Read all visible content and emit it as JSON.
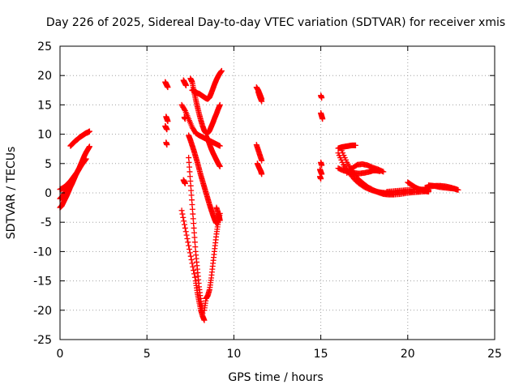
{
  "chart_data": {
    "type": "scatter",
    "title": "Day 226 of 2025, Sidereal Day-to-day VTEC variation (SDTVAR) for receiver xmis",
    "xlabel": "GPS time / hours",
    "ylabel": "SDTVAR / TECUs",
    "xlim": [
      0,
      25
    ],
    "ylim": [
      -25,
      25
    ],
    "xticks": [
      0,
      5,
      10,
      15,
      20,
      25
    ],
    "yticks": [
      -25,
      -20,
      -15,
      -10,
      -5,
      0,
      5,
      10,
      15,
      20,
      25
    ],
    "xtick_labels": [
      "0",
      "5",
      "10",
      "15",
      "20",
      "25"
    ],
    "ytick_labels": [
      "-25",
      "-20",
      "-15",
      "-10",
      "-5",
      "0",
      "5",
      "10",
      "15",
      "20",
      "25"
    ],
    "grid": true,
    "marker": "+",
    "color": "#ff0000",
    "series": [
      {
        "x": [
          0.0,
          0.1,
          0.2,
          0.3,
          0.4,
          0.5,
          0.6,
          0.7,
          0.8,
          0.9,
          1.0,
          1.1,
          1.2,
          1.3,
          1.4,
          1.5,
          1.6,
          1.7
        ],
        "y": [
          -2.5,
          -2.2,
          -1.6,
          -1.0,
          -0.4,
          0.3,
          1.0,
          1.6,
          2.3,
          3.0,
          3.6,
          4.2,
          4.9,
          5.6,
          6.3,
          6.9,
          7.4,
          7.9
        ]
      },
      {
        "x": [
          0.0,
          0.1,
          0.2,
          0.3,
          0.4,
          0.5,
          0.6,
          0.7,
          0.8,
          0.9,
          1.0,
          1.1,
          1.2,
          1.3,
          1.4,
          1.5
        ],
        "y": [
          -1.0,
          -0.7,
          -0.3,
          0.1,
          0.5,
          1.0,
          1.5,
          2.0,
          2.6,
          3.1,
          3.6,
          4.1,
          4.6,
          5.0,
          5.4,
          5.8
        ]
      },
      {
        "x": [
          0.0,
          0.1,
          0.2,
          0.3,
          0.4,
          0.5,
          0.6,
          0.7,
          0.8,
          0.9,
          1.0,
          1.1,
          1.2
        ],
        "y": [
          0.6,
          0.7,
          0.9,
          1.1,
          1.4,
          1.7,
          2.0,
          2.4,
          2.8,
          3.2,
          3.6,
          4.1,
          4.6
        ]
      },
      {
        "x": [
          0.6,
          0.7,
          0.8,
          0.9,
          1.0,
          1.1,
          1.2,
          1.3,
          1.4,
          1.5,
          1.6,
          1.7
        ],
        "y": [
          8.0,
          8.3,
          8.6,
          8.9,
          9.1,
          9.4,
          9.6,
          9.8,
          10.0,
          10.2,
          10.3,
          10.5
        ]
      },
      {
        "x": [
          6.05,
          6.1,
          6.15,
          6.2
        ],
        "y": [
          18.9,
          18.6,
          18.3,
          18.0
        ]
      },
      {
        "x": [
          6.1,
          6.15,
          6.2
        ],
        "y": [
          13.0,
          12.6,
          12.2
        ]
      },
      {
        "x": [
          6.05,
          6.1,
          6.15
        ],
        "y": [
          11.4,
          11.1,
          10.8
        ]
      },
      {
        "x": [
          6.1,
          6.15
        ],
        "y": [
          8.6,
          8.2
        ]
      },
      {
        "x": [
          7.1,
          7.15,
          7.2,
          7.25
        ],
        "y": [
          19.2,
          18.9,
          18.6,
          18.3
        ]
      },
      {
        "x": [
          7.15,
          7.2
        ],
        "y": [
          12.9,
          12.6
        ]
      },
      {
        "x": [
          7.1,
          7.15,
          7.2
        ],
        "y": [
          2.2,
          1.9,
          1.6
        ]
      },
      {
        "x": [
          7.6,
          7.7,
          7.8,
          7.9,
          8.0,
          8.1,
          8.2,
          8.3,
          8.4,
          8.5,
          8.6,
          8.7,
          8.8,
          8.9,
          9.0,
          9.1,
          9.2,
          9.3
        ],
        "y": [
          17.5,
          17.4,
          17.2,
          17.0,
          16.9,
          16.7,
          16.5,
          16.3,
          16.1,
          16.0,
          16.3,
          17.0,
          17.8,
          18.6,
          19.3,
          19.9,
          20.4,
          20.8
        ]
      },
      {
        "x": [
          7.5,
          7.6,
          7.7,
          7.8,
          7.9,
          8.0,
          8.1,
          8.2,
          8.3,
          8.4,
          8.5,
          8.6,
          8.7,
          8.8,
          8.9,
          9.0,
          9.1,
          9.2
        ],
        "y": [
          19.5,
          18.9,
          17.4,
          16.0,
          14.7,
          13.5,
          12.4,
          11.4,
          10.6,
          10.2,
          10.2,
          10.6,
          11.3,
          12.0,
          12.8,
          13.5,
          14.3,
          15.0
        ]
      },
      {
        "x": [
          7.0,
          7.2,
          7.4,
          7.6,
          7.8,
          8.0,
          8.2,
          8.4,
          8.6,
          8.8,
          9.0,
          9.2
        ],
        "y": [
          15.0,
          14.0,
          12.6,
          11.2,
          10.2,
          9.8,
          9.5,
          9.2,
          8.9,
          8.6,
          8.3,
          8.0
        ]
      },
      {
        "x": [
          7.4,
          7.5,
          7.6,
          7.7,
          7.8,
          7.9,
          8.0,
          8.1,
          8.2,
          8.3,
          8.4,
          8.5,
          8.6,
          8.7,
          8.8,
          8.9,
          9.0
        ],
        "y": [
          9.8,
          9.0,
          8.1,
          7.2,
          6.2,
          5.2,
          4.1,
          3.0,
          2.0,
          1.0,
          0.0,
          -1.0,
          -2.0,
          -2.9,
          -3.8,
          -4.6,
          -5.2
        ]
      },
      {
        "x": [
          8.4,
          8.5,
          8.6,
          8.7,
          8.8,
          8.9,
          9.0,
          9.1,
          9.2
        ],
        "y": [
          9.7,
          9.1,
          8.3,
          7.5,
          6.8,
          6.2,
          5.6,
          5.0,
          4.5
        ]
      },
      {
        "x": [
          7.0,
          7.2,
          7.4,
          7.6,
          7.8,
          7.9,
          8.0,
          8.1,
          8.2,
          8.3
        ],
        "y": [
          -3.0,
          -6.0,
          -9.0,
          -12.0,
          -15.0,
          -17.0,
          -18.5,
          -20.0,
          -21.0,
          -21.7
        ]
      },
      {
        "x": [
          7.4,
          7.5,
          7.6,
          7.7,
          7.8,
          7.9,
          8.0,
          8.1,
          8.2
        ],
        "y": [
          6.0,
          2.0,
          -2.0,
          -6.0,
          -10.0,
          -13.0,
          -16.0,
          -18.5,
          -20.5
        ]
      },
      {
        "x": [
          8.3,
          8.4,
          8.5,
          8.6,
          8.7,
          8.8,
          8.9,
          9.0,
          9.1,
          9.2
        ],
        "y": [
          -20.0,
          -18.0,
          -17.5,
          -16.5,
          -14.5,
          -12.0,
          -9.5,
          -7.0,
          -5.0,
          -3.5
        ]
      },
      {
        "x": [
          9.0,
          9.1,
          9.15,
          9.2
        ],
        "y": [
          -2.5,
          -3.5,
          -4.0,
          -4.7
        ]
      },
      {
        "x": [
          11.3,
          11.4,
          11.5,
          11.6
        ],
        "y": [
          18.0,
          17.5,
          16.8,
          16.0
        ]
      },
      {
        "x": [
          11.4,
          11.5,
          11.6
        ],
        "y": [
          17.2,
          16.3,
          15.6
        ]
      },
      {
        "x": [
          11.3,
          11.4,
          11.5,
          11.6
        ],
        "y": [
          8.2,
          7.3,
          6.4,
          5.5
        ]
      },
      {
        "x": [
          11.35,
          11.45,
          11.55,
          11.6
        ],
        "y": [
          5.0,
          4.3,
          3.7,
          3.2
        ]
      },
      {
        "x": [
          15.0,
          15.05
        ],
        "y": [
          16.6,
          16.2
        ]
      },
      {
        "x": [
          15.0,
          15.05,
          15.1
        ],
        "y": [
          13.6,
          13.1,
          12.6
        ]
      },
      {
        "x": [
          15.0,
          15.05
        ],
        "y": [
          5.2,
          4.7
        ]
      },
      {
        "x": [
          14.95,
          15.0,
          15.05
        ],
        "y": [
          4.0,
          3.6,
          3.2
        ]
      },
      {
        "x": [
          14.95,
          15.0
        ],
        "y": [
          2.8,
          2.4
        ]
      },
      {
        "x": [
          16.0,
          16.2,
          16.4,
          16.6,
          16.8,
          17.0
        ],
        "y": [
          7.6,
          7.8,
          7.9,
          8.0,
          8.1,
          8.1
        ]
      },
      {
        "x": [
          16.0,
          16.3,
          16.6,
          16.9,
          17.2,
          17.5,
          17.8,
          18.1,
          18.4,
          18.7,
          19.0,
          19.5,
          20.0,
          20.5,
          21.0
        ],
        "y": [
          6.8,
          4.8,
          3.5,
          2.4,
          1.6,
          1.0,
          0.6,
          0.3,
          0.1,
          0.0,
          0.0,
          0.1,
          0.2,
          0.2,
          0.3
        ]
      },
      {
        "x": [
          16.2,
          16.5,
          16.8,
          17.1,
          17.4,
          17.7,
          18.0,
          18.3,
          18.6,
          18.9,
          19.2,
          19.6,
          20.0,
          20.4,
          20.8,
          21.2
        ],
        "y": [
          7.2,
          5.2,
          3.7,
          2.5,
          1.7,
          1.0,
          0.5,
          0.1,
          -0.2,
          -0.3,
          -0.3,
          -0.2,
          0.0,
          0.1,
          0.2,
          0.3
        ]
      },
      {
        "x": [
          16.0,
          16.3,
          16.6,
          16.9,
          17.2,
          17.5,
          17.8,
          18.0,
          18.2,
          18.4
        ],
        "y": [
          4.2,
          3.8,
          3.6,
          3.4,
          3.3,
          3.4,
          3.6,
          3.8,
          3.8,
          3.7
        ]
      },
      {
        "x": [
          16.5,
          16.8,
          17.1,
          17.4,
          17.7,
          18.0,
          18.3,
          18.6
        ],
        "y": [
          3.4,
          4.2,
          4.8,
          4.9,
          4.7,
          4.3,
          4.0,
          3.6
        ]
      },
      {
        "x": [
          18.8,
          19.2,
          19.6,
          20.0,
          20.4,
          20.8,
          21.2
        ],
        "y": [
          0.2,
          0.3,
          0.4,
          0.5,
          0.5,
          0.6,
          0.5
        ]
      },
      {
        "x": [
          20.0,
          20.2,
          20.4,
          20.6,
          20.8,
          21.0,
          21.2
        ],
        "y": [
          1.8,
          1.4,
          1.0,
          0.7,
          0.5,
          0.3,
          0.2
        ]
      },
      {
        "x": [
          21.0,
          21.3,
          21.6,
          21.9,
          22.2,
          22.5,
          22.8
        ],
        "y": [
          0.9,
          1.1,
          1.2,
          1.2,
          1.1,
          0.9,
          0.6
        ]
      },
      {
        "x": [
          21.2,
          21.5,
          21.8,
          22.1,
          22.4,
          22.7,
          22.9
        ],
        "y": [
          1.3,
          1.2,
          1.0,
          0.9,
          0.8,
          0.7,
          0.5
        ]
      }
    ]
  }
}
